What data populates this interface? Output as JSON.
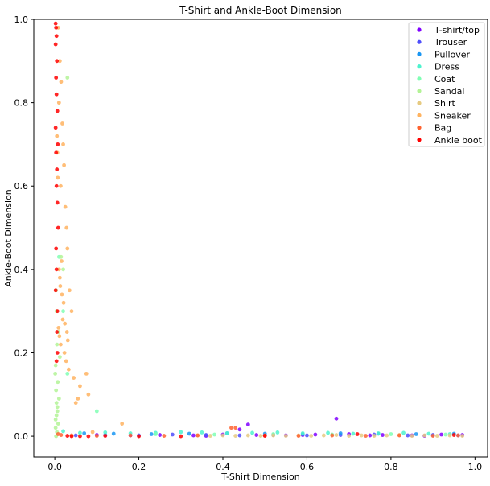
{
  "chart_data": {
    "type": "scatter",
    "title": "T-Shirt and Ankle-Boot Dimension",
    "xlabel": "T-Shirt Dimension",
    "ylabel": "Ankle-Boot Dimension",
    "xlim": [
      -0.05,
      1.03
    ],
    "ylim": [
      -0.05,
      1.0
    ],
    "xticks": [
      0.0,
      0.2,
      0.4,
      0.6,
      0.8,
      1.0
    ],
    "xtick_labels": [
      "0.0",
      "0.2",
      "0.4",
      "0.6",
      "0.8",
      "1.0"
    ],
    "yticks": [
      0.0,
      0.2,
      0.4,
      0.6,
      0.8,
      1.0
    ],
    "ytick_labels": [
      "0.0",
      "0.2",
      "0.4",
      "0.6",
      "0.8",
      "1.0"
    ],
    "grid": false,
    "legend_position": "top-right",
    "series": [
      {
        "name": "T-shirt/top",
        "color": "#8000ff",
        "x": [
          0.97,
          0.92,
          0.85,
          0.78,
          0.7,
          0.62,
          0.55,
          0.48,
          0.4,
          0.33,
          0.25,
          0.18,
          0.1,
          0.67,
          0.46,
          0.44,
          0.88,
          0.75,
          0.59,
          0.36
        ],
        "y": [
          0.003,
          0.004,
          0.002,
          0.003,
          0.005,
          0.004,
          0.002,
          0.003,
          0.004,
          0.002,
          0.003,
          0.002,
          0.003,
          0.042,
          0.028,
          0.016,
          0.001,
          0.002,
          0.003,
          0.001
        ]
      },
      {
        "name": "Trouser",
        "color": "#4e4efb",
        "x": [
          0.96,
          0.9,
          0.84,
          0.76,
          0.68,
          0.6,
          0.52,
          0.44,
          0.36,
          0.28,
          0.2,
          0.12,
          0.05
        ],
        "y": [
          0.002,
          0.003,
          0.002,
          0.004,
          0.003,
          0.002,
          0.003,
          0.002,
          0.003,
          0.004,
          0.002,
          0.003,
          0.002
        ]
      },
      {
        "name": "Pullover",
        "color": "#1996f3",
        "x": [
          0.95,
          0.86,
          0.77,
          0.68,
          0.59,
          0.5,
          0.41,
          0.32,
          0.23,
          0.14,
          0.07
        ],
        "y": [
          0.006,
          0.005,
          0.006,
          0.007,
          0.005,
          0.006,
          0.007,
          0.006,
          0.005,
          0.006,
          0.007
        ]
      },
      {
        "name": "Dress",
        "color": "#4df3ce",
        "x": [
          0.94,
          0.89,
          0.83,
          0.77,
          0.71,
          0.65,
          0.59,
          0.53,
          0.47,
          0.41,
          0.35,
          0.3,
          0.24,
          0.18,
          0.12,
          0.06,
          0.02
        ],
        "y": [
          0.005,
          0.006,
          0.008,
          0.007,
          0.006,
          0.008,
          0.007,
          0.009,
          0.008,
          0.007,
          0.009,
          0.01,
          0.008,
          0.007,
          0.009,
          0.008,
          0.012
        ]
      },
      {
        "name": "Coat",
        "color": "#80ffb4",
        "x": [
          0.93,
          0.8,
          0.66,
          0.52,
          0.38,
          0.24,
          0.1,
          0.03,
          0.02,
          0.01
        ],
        "y": [
          0.004,
          0.005,
          0.004,
          0.005,
          0.004,
          0.005,
          0.06,
          0.15,
          0.3,
          0.43
        ]
      },
      {
        "name": "Sandal",
        "color": "#b3f396",
        "x": [
          0.003,
          0.005,
          0.002,
          0.008,
          0.004,
          0.006,
          0.01,
          0.003,
          0.007,
          0.001,
          0.002,
          0.012,
          0.005,
          0.009,
          0.004,
          0.003,
          0.03,
          0.02,
          0.015,
          0.006,
          0.004,
          0.002
        ],
        "y": [
          0.0,
          0.01,
          0.02,
          0.03,
          0.05,
          0.07,
          0.09,
          0.11,
          0.13,
          0.15,
          0.17,
          0.19,
          0.22,
          0.25,
          0.3,
          0.35,
          0.86,
          0.4,
          0.43,
          0.06,
          0.08,
          0.04
        ]
      },
      {
        "name": "Shirt",
        "color": "#e6ca81",
        "x": [
          0.97,
          0.94,
          0.91,
          0.88,
          0.85,
          0.82,
          0.79,
          0.76,
          0.73,
          0.7,
          0.67,
          0.64,
          0.61,
          0.58,
          0.55,
          0.52,
          0.49,
          0.46,
          0.43,
          0.4,
          0.37,
          0.34
        ],
        "y": [
          0.001,
          0.002,
          0.001,
          0.002,
          0.001,
          0.003,
          0.002,
          0.001,
          0.002,
          0.001,
          0.003,
          0.002,
          0.001,
          0.002,
          0.001,
          0.002,
          0.001,
          0.002,
          0.001,
          0.002,
          0.001,
          0.002
        ]
      },
      {
        "name": "Sneaker",
        "color": "#ffb360",
        "x": [
          0.008,
          0.012,
          0.015,
          0.01,
          0.018,
          0.02,
          0.022,
          0.014,
          0.025,
          0.028,
          0.03,
          0.016,
          0.012,
          0.035,
          0.04,
          0.019,
          0.009,
          0.011,
          0.014,
          0.023,
          0.027,
          0.033,
          0.045,
          0.06,
          0.08,
          0.075,
          0.055,
          0.05,
          0.021,
          0.017,
          0.013,
          0.01,
          0.007,
          0.006,
          0.005,
          0.16,
          0.09,
          0.024,
          0.031,
          0.029
        ],
        "y": [
          0.98,
          0.9,
          0.85,
          0.8,
          0.75,
          0.7,
          0.65,
          0.6,
          0.55,
          0.5,
          0.45,
          0.42,
          0.38,
          0.35,
          0.3,
          0.28,
          0.26,
          0.24,
          0.22,
          0.2,
          0.18,
          0.16,
          0.14,
          0.12,
          0.1,
          0.15,
          0.09,
          0.08,
          0.32,
          0.34,
          0.36,
          0.4,
          0.62,
          0.68,
          0.72,
          0.03,
          0.01,
          0.27,
          0.23,
          0.25
        ]
      },
      {
        "name": "Bag",
        "color": "#ff6330",
        "x": [
          0.96,
          0.9,
          0.82,
          0.74,
          0.66,
          0.58,
          0.5,
          0.42,
          0.34,
          0.26,
          0.18,
          0.1,
          0.04,
          0.015,
          0.008,
          0.43
        ],
        "y": [
          0.002,
          0.001,
          0.002,
          0.001,
          0.002,
          0.001,
          0.002,
          0.02,
          0.002,
          0.001,
          0.002,
          0.001,
          0.002,
          0.003,
          0.005,
          0.02
        ]
      },
      {
        "name": "Ankle boot",
        "color": "#ff0000",
        "x": [
          0.002,
          0.003,
          0.004,
          0.002,
          0.005,
          0.003,
          0.004,
          0.006,
          0.002,
          0.007,
          0.003,
          0.005,
          0.004,
          0.006,
          0.008,
          0.003,
          0.004,
          0.002,
          0.006,
          0.005,
          0.04,
          0.03,
          0.06,
          0.08,
          0.12,
          0.2,
          0.3,
          0.5,
          0.72,
          0.95,
          0.006,
          0.004
        ],
        "y": [
          0.99,
          0.98,
          0.96,
          0.94,
          0.9,
          0.86,
          0.82,
          0.78,
          0.74,
          0.7,
          0.68,
          0.64,
          0.6,
          0.56,
          0.5,
          0.45,
          0.4,
          0.35,
          0.3,
          0.25,
          0.0,
          0.001,
          0.0,
          0.0,
          0.001,
          0.0,
          0.0,
          0.001,
          0.005,
          0.003,
          0.2,
          0.18
        ]
      }
    ]
  }
}
